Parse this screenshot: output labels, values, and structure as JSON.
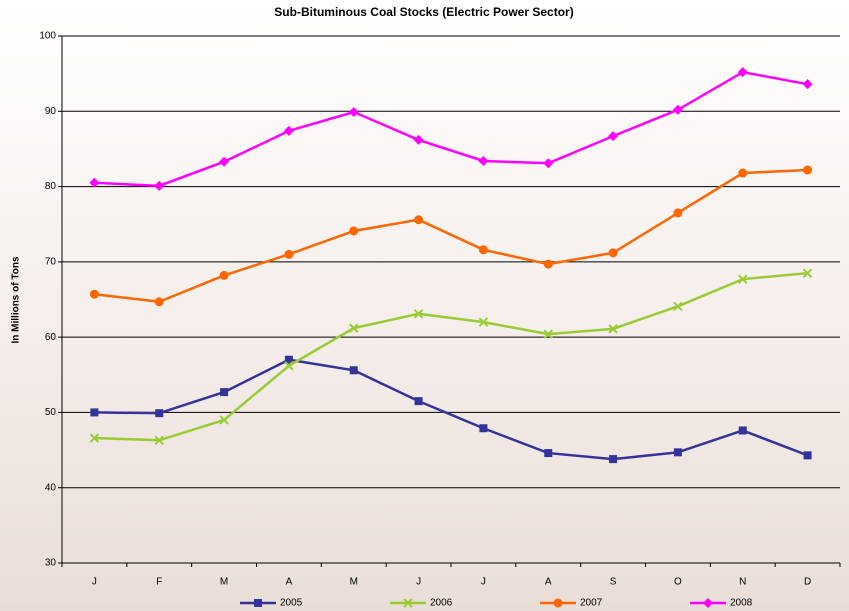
{
  "chart_data": {
    "type": "line",
    "title": "Sub-Bituminous Coal Stocks (Electric Power Sector)",
    "y_label": "In Millions of Tons",
    "categories": [
      "J",
      "F",
      "M",
      "A",
      "M",
      "J",
      "J",
      "A",
      "S",
      "O",
      "N",
      "D"
    ],
    "series": [
      {
        "name": "2005",
        "color": "#333399",
        "marker": "square",
        "values": [
          50.0,
          49.9,
          52.7,
          57.0,
          55.6,
          51.5,
          47.9,
          44.6,
          43.8,
          44.7,
          47.6,
          44.3
        ]
      },
      {
        "name": "2006",
        "color": "#99cc33",
        "marker": "x",
        "values": [
          46.6,
          46.3,
          49.0,
          56.2,
          61.2,
          63.1,
          62.0,
          60.4,
          61.1,
          64.1,
          67.7,
          68.5
        ]
      },
      {
        "name": "2007",
        "color": "#ff6600",
        "marker": "circle",
        "values": [
          65.7,
          64.7,
          68.2,
          71.0,
          74.1,
          75.6,
          71.6,
          69.7,
          71.2,
          76.5,
          81.8,
          82.2
        ]
      },
      {
        "name": "2008",
        "color": "#ff00ff",
        "marker": "diamond",
        "values": [
          80.5,
          80.1,
          83.3,
          87.4,
          89.9,
          86.2,
          83.4,
          83.1,
          86.7,
          90.2,
          95.2,
          93.6
        ]
      }
    ],
    "ylim": [
      30,
      100
    ],
    "yticks": [
      30,
      40,
      50,
      60,
      70,
      80,
      90,
      100
    ],
    "grid": true,
    "legend": "bottom"
  }
}
